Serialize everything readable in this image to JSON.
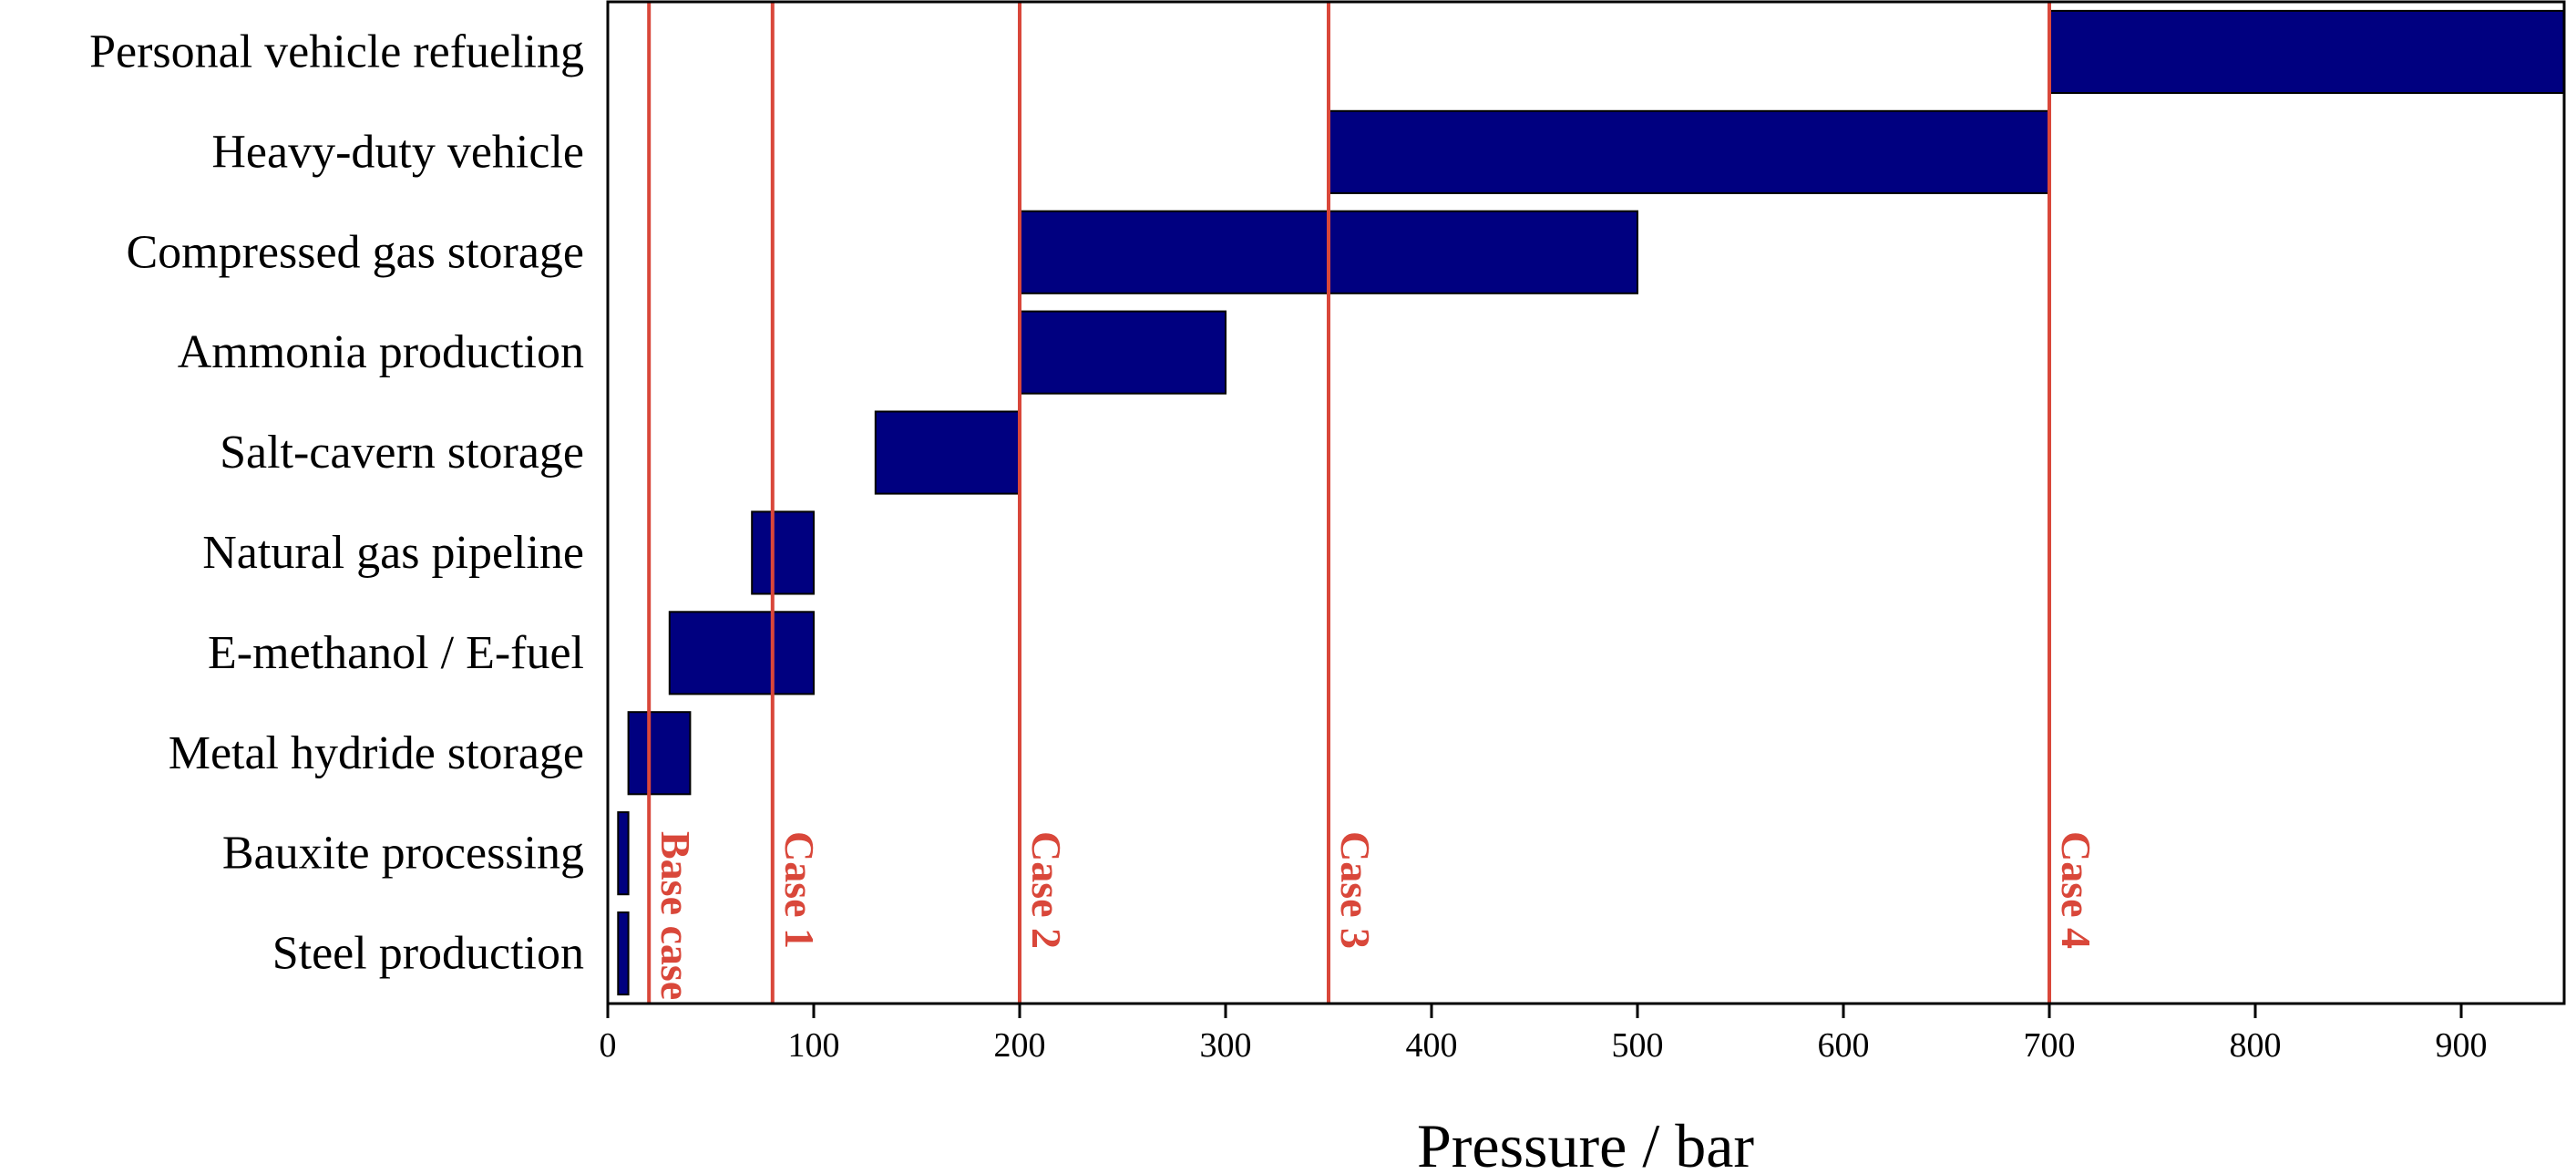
{
  "chart_data": {
    "type": "bar",
    "orientation": "horizontal-range",
    "xlabel": "Pressure / bar",
    "ylabel": "",
    "xlim": [
      0,
      950
    ],
    "x_ticks": [
      0,
      100,
      200,
      300,
      400,
      500,
      600,
      700,
      800,
      900
    ],
    "grid": false,
    "categories": [
      "Personal vehicle refueling",
      "Heavy-duty vehicle",
      "Compressed gas storage",
      "Ammonia production",
      "Salt-cavern storage",
      "Natural gas pipeline",
      "E-methanol / E-fuel",
      "Metal hydride storage",
      "Bauxite processing",
      "Steel production"
    ],
    "ranges": [
      [
        700,
        950
      ],
      [
        350,
        700
      ],
      [
        200,
        500
      ],
      [
        200,
        300
      ],
      [
        130,
        200
      ],
      [
        70,
        100
      ],
      [
        30,
        100
      ],
      [
        10,
        40
      ],
      [
        5,
        10
      ],
      [
        5,
        10
      ]
    ],
    "bar_color": "#000080",
    "case_color": "#d9473a",
    "cases": [
      {
        "label": "Base case",
        "value": 20
      },
      {
        "label": "Case 1",
        "value": 80
      },
      {
        "label": "Case 2",
        "value": 200
      },
      {
        "label": "Case 3",
        "value": 350
      },
      {
        "label": "Case 4",
        "value": 700
      }
    ]
  }
}
